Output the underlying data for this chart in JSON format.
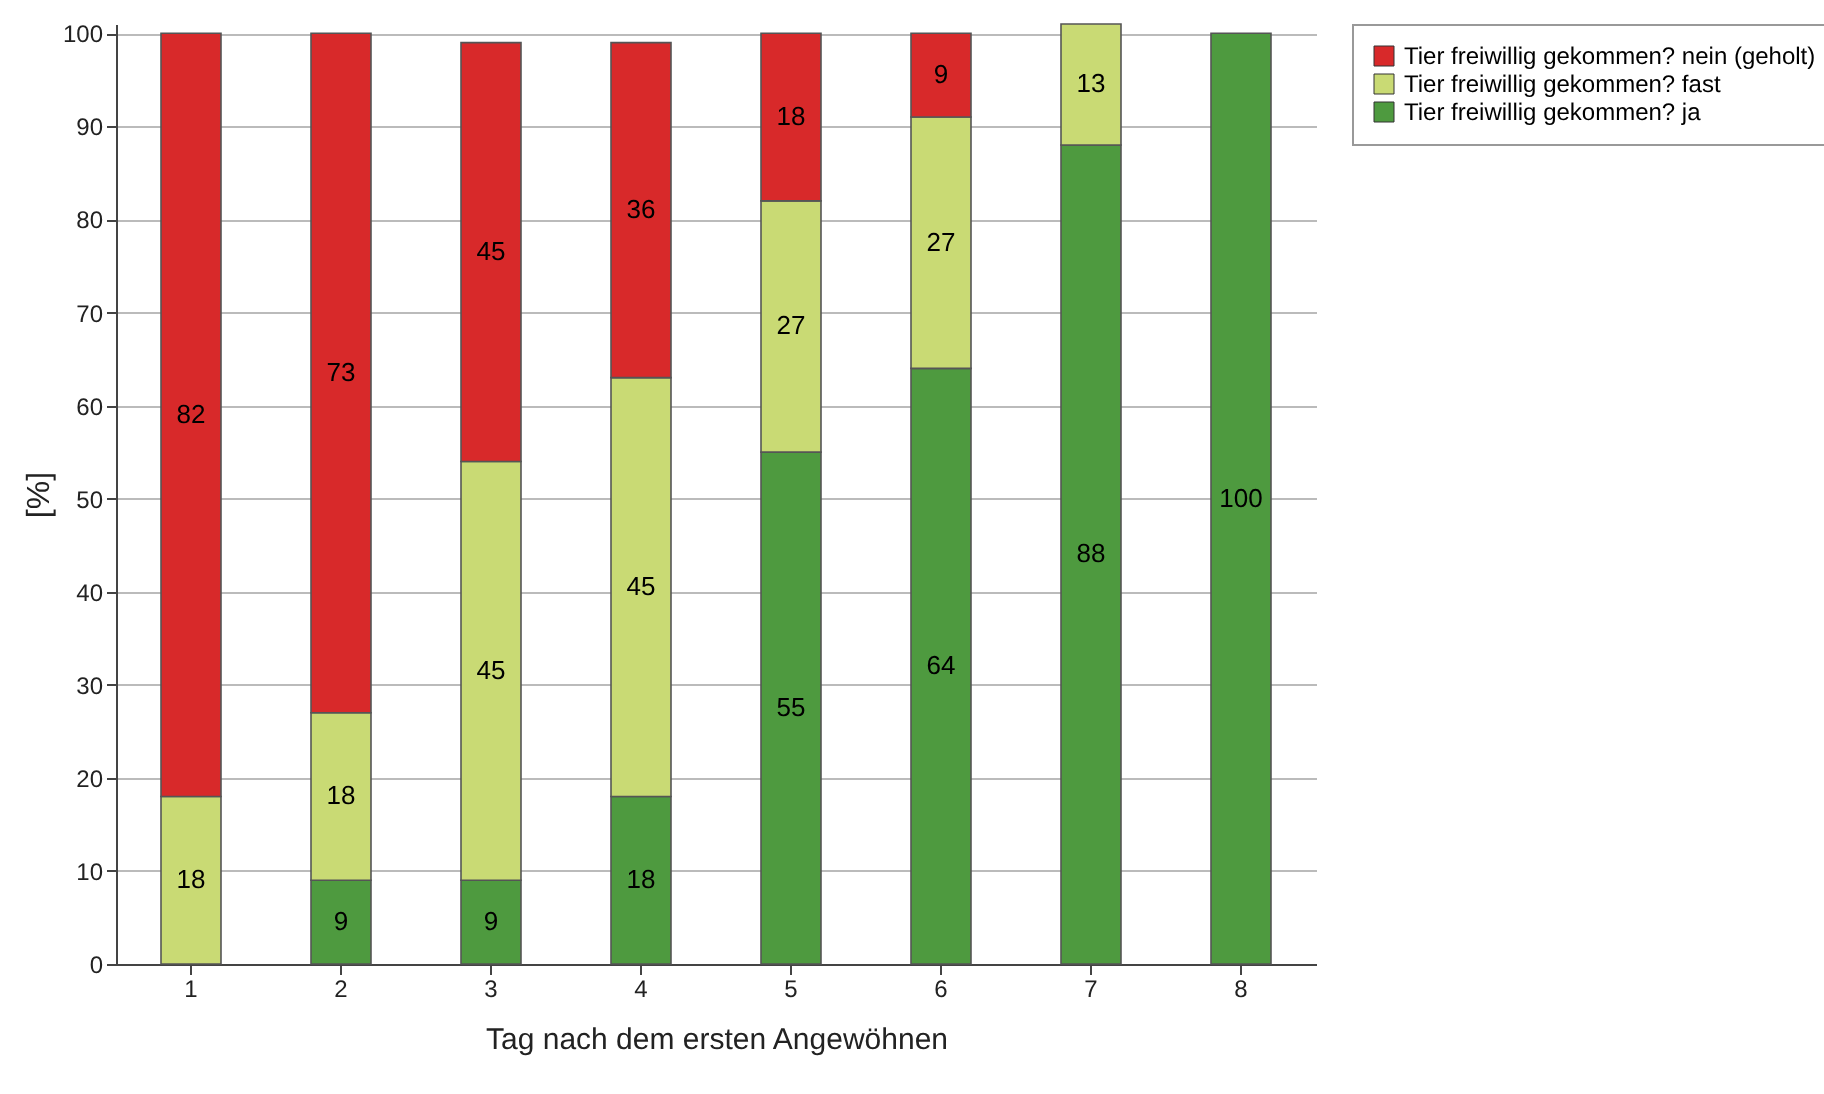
{
  "chart_data": {
    "type": "bar",
    "stacked": true,
    "xlabel": "Tag nach dem ersten Angewöhnen",
    "ylabel": "[%]",
    "categories": [
      "1",
      "2",
      "3",
      "4",
      "5",
      "6",
      "7",
      "8"
    ],
    "series": [
      {
        "name": "Tier freiwillig gekommen? ja",
        "color": "#4e9a3f",
        "values": [
          null,
          9,
          9,
          18,
          55,
          64,
          88,
          100
        ]
      },
      {
        "name": "Tier freiwillig gekommen? fast",
        "color": "#c9da74",
        "values": [
          18,
          18,
          45,
          45,
          27,
          27,
          13,
          null
        ]
      },
      {
        "name": "Tier freiwillig gekommen? nein (geholt)",
        "color": "#d8292a",
        "values": [
          82,
          73,
          45,
          36,
          18,
          9,
          null,
          null
        ]
      }
    ],
    "ylim": [
      0,
      101
    ],
    "yticks": [
      0,
      10,
      20,
      30,
      40,
      50,
      60,
      70,
      80,
      90,
      100
    ],
    "grid": "y",
    "data_labels": true,
    "legend": "right"
  }
}
